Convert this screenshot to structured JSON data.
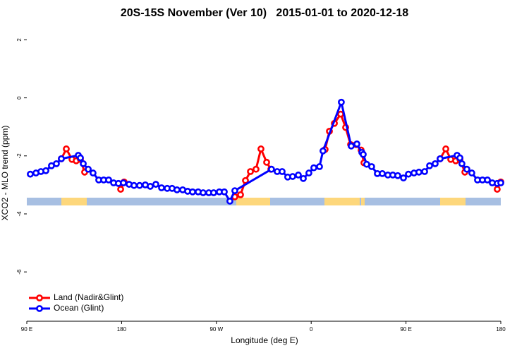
{
  "chart_data": {
    "type": "line",
    "title": "20S-15S November (Ver 10)   2015-01-01 to 2020-12-18",
    "x_label": "Longitude (deg E)",
    "y_label": "XCO2 - MLO trend (ppm)",
    "xlim": [
      90,
      540
    ],
    "xticks": [
      {
        "value": 90,
        "label": "90 E"
      },
      180,
      {
        "value": 270,
        "label": "90 W"
      },
      {
        "value": 360,
        "label": "0"
      },
      {
        "value": 450,
        "label": "90 E"
      },
      {
        "value": 540,
        "label": "180"
      }
    ],
    "ylim": [
      -7.7,
      2.4
    ],
    "yticks": [
      2,
      0,
      -2,
      -4,
      -6
    ],
    "legend": "bottom-left",
    "series": [
      {
        "name": "Land (Nadir&Glint)",
        "color": "#ff0000",
        "x": [
          122.8,
          127.5,
          132.9,
          136.9,
          140.9,
          144.9,
          null,
          179.1,
          182.4,
          null,
          287.5,
          292.9,
          297.6,
          302.3,
          307.6,
          312.3,
          317.7,
          321.7,
          null,
          373.2,
          377.3,
          382.0,
          388.0,
          392.7,
          397.4,
          402.7,
          407.4,
          410.1,
          null,
          482.4,
          487.8,
          492.5,
          497.2,
          501.2,
          505.9,
          null,
          536.6,
          540.0
        ],
        "values": [
          -2.1,
          -1.76,
          -2.12,
          -2.17,
          -2.12,
          -2.56,
          null,
          -3.15,
          -2.9,
          null,
          -3.41,
          -3.34,
          -2.85,
          -2.54,
          -2.46,
          -1.76,
          -2.22,
          -2.46,
          null,
          -1.78,
          -1.15,
          -0.88,
          -0.56,
          -1.02,
          -1.61,
          -1.61,
          -1.8,
          -2.24,
          null,
          -2.1,
          -1.76,
          -2.12,
          -2.17,
          -2.12,
          -2.56,
          null,
          -3.15,
          -2.9
        ]
      },
      {
        "name": "Ocean (Glint)",
        "color": "#0000ff",
        "x": [
          93.3,
          98.7,
          103.4,
          108.1,
          113.4,
          118.1,
          122.8,
          138.9,
          140.9,
          143.6,
          148.3,
          152.9,
          158.3,
          163.0,
          167.7,
          172.4,
          177.0,
          181.7,
          187.1,
          191.8,
          197.1,
          202.5,
          207.2,
          212.5,
          217.9,
          223.3,
          227.9,
          232.6,
          238.0,
          242.7,
          247.4,
          252.7,
          257.4,
          262.8,
          267.4,
          272.8,
          277.5,
          282.8,
          287.5,
          322.3,
          327.7,
          332.4,
          337.7,
          342.4,
          347.8,
          352.5,
          357.8,
          362.5,
          367.9,
          371.2,
          388.6,
          398.0,
          403.4,
          408.1,
          409.4,
          412.7,
          417.4,
          422.8,
          427.5,
          432.8,
          437.5,
          442.2,
          447.6,
          452.3,
          457.6,
          462.3,
          467.7,
          472.4,
          477.7,
          482.4,
          498.5,
          501.2,
          503.1,
          507.8,
          512.5,
          517.9,
          522.6,
          527.3,
          531.9,
          536.6,
          540.0
        ],
        "values": [
          -2.63,
          -2.59,
          -2.54,
          -2.51,
          -2.34,
          -2.27,
          -2.1,
          -1.98,
          -2.07,
          -2.27,
          -2.46,
          -2.59,
          -2.83,
          -2.83,
          -2.83,
          -2.93,
          -2.95,
          -2.93,
          -2.98,
          -3.02,
          -3.02,
          -3.0,
          -3.05,
          -2.98,
          -3.1,
          -3.12,
          -3.12,
          -3.17,
          -3.17,
          -3.22,
          -3.24,
          -3.24,
          -3.27,
          -3.27,
          -3.27,
          -3.24,
          -3.24,
          -3.56,
          -3.2,
          -2.46,
          -2.54,
          -2.54,
          -2.73,
          -2.71,
          -2.66,
          -2.78,
          -2.59,
          -2.41,
          -2.37,
          -1.83,
          -0.15,
          -1.66,
          -1.59,
          -1.88,
          -1.95,
          -2.29,
          -2.37,
          -2.61,
          -2.61,
          -2.66,
          -2.66,
          -2.68,
          -2.76,
          -2.63,
          -2.59,
          -2.56,
          -2.54,
          -2.34,
          -2.27,
          -2.1,
          -1.98,
          -2.07,
          -2.27,
          -2.46,
          -2.59,
          -2.83,
          -2.83,
          -2.83,
          -2.93,
          -2.95,
          -2.93
        ]
      }
    ]
  }
}
